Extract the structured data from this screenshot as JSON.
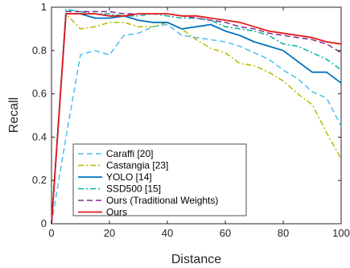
{
  "chart_data": {
    "type": "line",
    "title": "",
    "xlabel": "Distance",
    "ylabel": "Recall",
    "xlim": [
      0,
      100
    ],
    "ylim": [
      0,
      1
    ],
    "xticks": [
      0,
      20,
      40,
      60,
      80,
      100
    ],
    "yticks": [
      0,
      0.2,
      0.4,
      0.6,
      0.8,
      1
    ],
    "grid": false,
    "legend_position": "bottom-left",
    "series": [
      {
        "name": "Caraffi [20]",
        "color": "#4dbeee",
        "dash": "dashed",
        "x": [
          0,
          5,
          10,
          15,
          20,
          25,
          30,
          35,
          40,
          45,
          50,
          55,
          60,
          65,
          70,
          75,
          80,
          85,
          90,
          95,
          100
        ],
        "y": [
          0,
          0.4,
          0.78,
          0.8,
          0.78,
          0.87,
          0.88,
          0.91,
          0.92,
          0.87,
          0.86,
          0.85,
          0.84,
          0.82,
          0.79,
          0.76,
          0.71,
          0.67,
          0.61,
          0.58,
          0.45
        ]
      },
      {
        "name": "Castangia [23]",
        "color": "#b8b800",
        "dash": "dashdot",
        "x": [
          0,
          5,
          10,
          15,
          20,
          25,
          30,
          35,
          40,
          45,
          50,
          55,
          60,
          65,
          70,
          75,
          80,
          85,
          90,
          95,
          100
        ],
        "y": [
          0,
          0.97,
          0.9,
          0.91,
          0.93,
          0.93,
          0.91,
          0.91,
          0.93,
          0.9,
          0.85,
          0.81,
          0.79,
          0.74,
          0.73,
          0.7,
          0.66,
          0.6,
          0.55,
          0.42,
          0.3
        ]
      },
      {
        "name": "YOLO [14]",
        "color": "#0072bd",
        "dash": "solid",
        "x": [
          0,
          5,
          10,
          15,
          20,
          25,
          30,
          35,
          40,
          45,
          50,
          55,
          60,
          65,
          70,
          75,
          80,
          85,
          90,
          95,
          100
        ],
        "y": [
          0,
          0.97,
          0.97,
          0.95,
          0.95,
          0.96,
          0.94,
          0.93,
          0.93,
          0.9,
          0.91,
          0.92,
          0.89,
          0.87,
          0.84,
          0.82,
          0.8,
          0.75,
          0.7,
          0.7,
          0.65
        ]
      },
      {
        "name": "SSD500 [15]",
        "color": "#00b2a0",
        "dash": "dashdot",
        "x": [
          0,
          5,
          10,
          15,
          20,
          25,
          30,
          35,
          40,
          45,
          50,
          55,
          60,
          65,
          70,
          75,
          80,
          85,
          90,
          95,
          100
        ],
        "y": [
          0,
          0.99,
          0.98,
          0.97,
          0.97,
          0.96,
          0.96,
          0.97,
          0.96,
          0.95,
          0.95,
          0.94,
          0.91,
          0.9,
          0.89,
          0.87,
          0.83,
          0.82,
          0.79,
          0.76,
          0.71
        ]
      },
      {
        "name": "Ours (Traditional Weights)",
        "color": "#7e2f8e",
        "dash": "dashed",
        "x": [
          0,
          5,
          10,
          15,
          20,
          25,
          30,
          35,
          40,
          45,
          50,
          55,
          60,
          65,
          70,
          75,
          80,
          85,
          90,
          95,
          100
        ],
        "y": [
          0,
          0.98,
          0.98,
          0.98,
          0.98,
          0.97,
          0.97,
          0.97,
          0.97,
          0.96,
          0.95,
          0.94,
          0.93,
          0.91,
          0.9,
          0.88,
          0.87,
          0.86,
          0.85,
          0.83,
          0.79
        ]
      },
      {
        "name": "Ours",
        "color": "#e31a1c",
        "dash": "solid",
        "x": [
          0,
          5,
          10,
          15,
          20,
          25,
          30,
          35,
          40,
          45,
          50,
          55,
          60,
          65,
          70,
          75,
          80,
          85,
          90,
          95,
          100
        ],
        "y": [
          0,
          0.97,
          0.97,
          0.97,
          0.96,
          0.96,
          0.97,
          0.97,
          0.97,
          0.96,
          0.96,
          0.95,
          0.94,
          0.93,
          0.91,
          0.89,
          0.88,
          0.87,
          0.86,
          0.84,
          0.83
        ]
      }
    ]
  }
}
